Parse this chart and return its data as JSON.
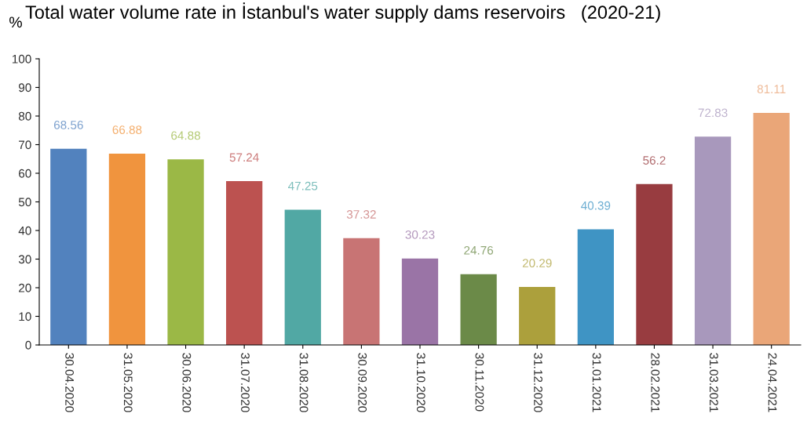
{
  "chart_data": {
    "type": "bar",
    "title": "Total water volume rate in İstanbul's water supply dams reservoirs   (2020-21)",
    "ylabel": "%",
    "categories": [
      "30.04.2020",
      "31.05.2020",
      "30.06.2020",
      "31.07.2020",
      "31.08.2020",
      "30.09.2020",
      "31.10.2020",
      "30.11.2020",
      "31.12.2020",
      "31.01.2021",
      "28.02.2021",
      "31.03.2021",
      "24.04.2021"
    ],
    "values": [
      68.56,
      66.88,
      64.88,
      57.24,
      47.25,
      37.32,
      30.23,
      24.76,
      20.29,
      40.39,
      56.2,
      72.83,
      81.11
    ],
    "colors": [
      "#5282be",
      "#f0943e",
      "#9bb846",
      "#bc5250",
      "#51a8a4",
      "#c87474",
      "#9a74a6",
      "#6b8a48",
      "#aca03c",
      "#3f94c4",
      "#983c40",
      "#a898bc",
      "#eaa678"
    ],
    "data_labels": true,
    "ylim": [
      0,
      100
    ],
    "yticks": [
      0,
      10,
      20,
      30,
      40,
      50,
      60,
      70,
      80,
      90,
      100
    ],
    "grid": false
  }
}
